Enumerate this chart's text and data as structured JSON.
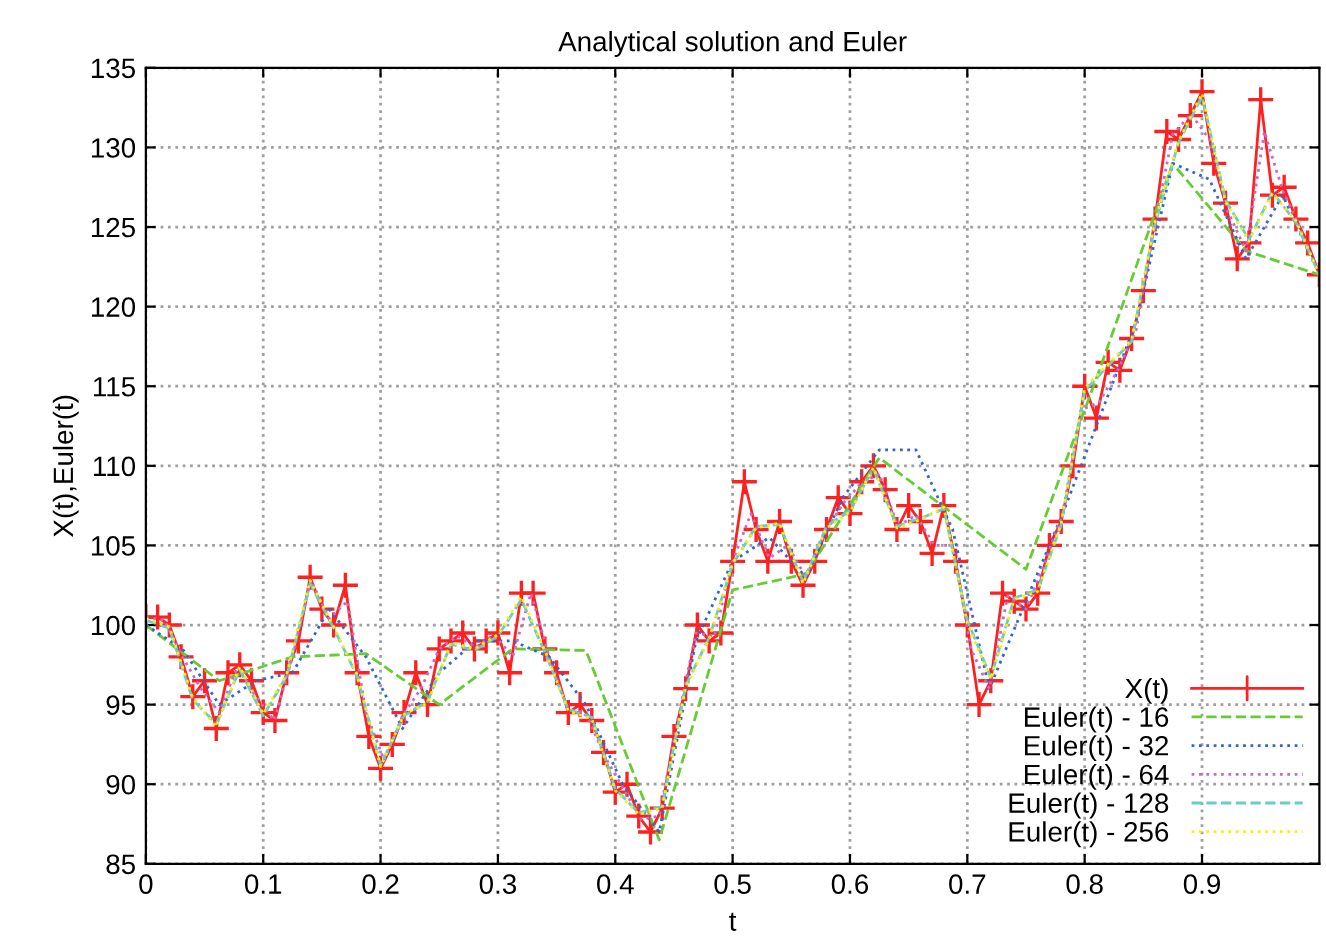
{
  "chart_data": {
    "type": "line",
    "title": "Analytical solution and Euler",
    "xlabel": "t",
    "ylabel": "X(t),Euler(t)",
    "xlim": [
      0,
      1
    ],
    "ylim": [
      85,
      135
    ],
    "xticks": [
      0,
      0.1,
      0.2,
      0.3,
      0.4,
      0.5,
      0.6,
      0.7,
      0.8,
      0.9
    ],
    "yticks": [
      85,
      90,
      95,
      100,
      105,
      110,
      115,
      120,
      125,
      130,
      135
    ],
    "grid": true,
    "legend": "bottom right",
    "series": [
      {
        "name": "X(t)",
        "color": "#ff2020",
        "marker": "cross",
        "line_style": "solid",
        "x": [
          0,
          0.01,
          0.02,
          0.03,
          0.04,
          0.05,
          0.06,
          0.07,
          0.08,
          0.09,
          0.1,
          0.11,
          0.12,
          0.13,
          0.14,
          0.15,
          0.16,
          0.17,
          0.18,
          0.19,
          0.2,
          0.21,
          0.22,
          0.23,
          0.24,
          0.25,
          0.26,
          0.27,
          0.28,
          0.29,
          0.3,
          0.31,
          0.32,
          0.33,
          0.34,
          0.35,
          0.36,
          0.37,
          0.38,
          0.39,
          0.4,
          0.41,
          0.42,
          0.43,
          0.44,
          0.45,
          0.46,
          0.47,
          0.48,
          0.49,
          0.5,
          0.51,
          0.52,
          0.53,
          0.54,
          0.55,
          0.56,
          0.57,
          0.58,
          0.59,
          0.6,
          0.61,
          0.62,
          0.63,
          0.64,
          0.65,
          0.66,
          0.67,
          0.68,
          0.69,
          0.7,
          0.71,
          0.72,
          0.73,
          0.74,
          0.75,
          0.76,
          0.77,
          0.78,
          0.79,
          0.8,
          0.81,
          0.82,
          0.83,
          0.84,
          0.85,
          0.86,
          0.87,
          0.88,
          0.89,
          0.9,
          0.91,
          0.92,
          0.93,
          0.94,
          0.95,
          0.96,
          0.97,
          0.98,
          0.99,
          1.0
        ],
        "values": [
          100.5,
          100.5,
          100,
          98,
          95.5,
          96.5,
          93.5,
          97,
          97.5,
          96.5,
          94.5,
          94,
          97,
          99,
          103,
          101,
          100,
          102.5,
          97,
          93,
          91,
          92.5,
          94.5,
          97,
          95,
          98.5,
          99,
          99.5,
          98.5,
          99,
          99.5,
          97,
          102,
          102,
          98.5,
          97,
          94.5,
          95,
          94,
          92,
          89.5,
          90,
          88,
          87,
          88.5,
          93,
          96,
          100,
          99,
          99.5,
          104,
          109,
          106,
          104,
          106.5,
          104,
          102.5,
          104,
          106,
          108,
          107,
          109,
          110,
          108.5,
          106,
          107.5,
          106.5,
          104.5,
          107.5,
          104,
          100,
          95,
          96.5,
          102,
          101.5,
          101,
          102,
          105,
          106.5,
          110,
          115,
          113,
          116.5,
          116,
          118,
          121,
          125.5,
          131,
          130.5,
          132,
          133.5,
          129,
          126.5,
          123,
          124,
          133,
          127,
          127.5,
          125.5,
          124,
          122
        ]
      },
      {
        "name": "Euler(t) - 16",
        "color": "#66cc33",
        "marker": "none",
        "line_style": "dashed",
        "x": [
          0,
          0.0625,
          0.125,
          0.1875,
          0.25,
          0.3125,
          0.375,
          0.4375,
          0.5,
          0.5625,
          0.625,
          0.6875,
          0.75,
          0.8125,
          0.875,
          0.9375,
          1.0
        ],
        "values": [
          100,
          96.5,
          98,
          98.2,
          95,
          98.5,
          98.4,
          86.5,
          102.2,
          103.2,
          110.5,
          107,
          103.5,
          116,
          129,
          123.5,
          122
        ]
      },
      {
        "name": "Euler(t) - 32",
        "color": "#3366cc",
        "marker": "none",
        "line_style": "dotted",
        "x": [
          0,
          0.03125,
          0.0625,
          0.09375,
          0.125,
          0.15625,
          0.1875,
          0.21875,
          0.25,
          0.28125,
          0.3125,
          0.34375,
          0.375,
          0.40625,
          0.4375,
          0.46875,
          0.5,
          0.53125,
          0.5625,
          0.59375,
          0.625,
          0.65625,
          0.6875,
          0.71875,
          0.75,
          0.78125,
          0.8125,
          0.84375,
          0.875,
          0.90625,
          0.9375,
          0.96875,
          1.0
        ],
        "values": [
          100,
          98.5,
          95,
          96.5,
          97,
          101,
          98,
          93.5,
          97,
          99,
          99,
          98,
          95,
          90,
          87,
          99,
          104,
          105.5,
          103,
          108,
          111,
          111,
          106,
          96,
          101.5,
          107,
          113,
          119,
          129,
          128,
          123,
          127,
          122
        ]
      },
      {
        "name": "Euler(t) - 64",
        "color": "#cc66cc",
        "marker": "none",
        "line_style": "dotted",
        "x": [
          0,
          0.015625,
          0.03125,
          0.046875,
          0.0625,
          0.078125,
          0.09375,
          0.109375,
          0.125,
          0.140625,
          0.15625,
          0.171875,
          0.1875,
          0.203125,
          0.21875,
          0.234375,
          0.25,
          0.265625,
          0.28125,
          0.296875,
          0.3125,
          0.328125,
          0.34375,
          0.359375,
          0.375,
          0.390625,
          0.40625,
          0.421875,
          0.4375,
          0.453125,
          0.46875,
          0.484375,
          0.5,
          0.515625,
          0.53125,
          0.546875,
          0.5625,
          0.578125,
          0.59375,
          0.609375,
          0.625,
          0.640625,
          0.65625,
          0.671875,
          0.6875,
          0.703125,
          0.71875,
          0.734375,
          0.75,
          0.765625,
          0.78125,
          0.796875,
          0.8125,
          0.828125,
          0.84375,
          0.859375,
          0.875,
          0.890625,
          0.90625,
          0.921875,
          0.9375,
          0.953125,
          0.96875,
          0.984375,
          1.0
        ],
        "values": [
          100.5,
          100.3,
          98,
          96,
          94.5,
          97.4,
          95.5,
          94,
          98,
          102.8,
          100.4,
          101.5,
          94.5,
          91.5,
          94.3,
          96,
          98.5,
          99.3,
          98.6,
          99.4,
          98,
          102,
          98,
          94.7,
          94.5,
          91.8,
          89.8,
          87.8,
          88,
          94,
          99.5,
          99.3,
          104,
          107,
          104.2,
          105,
          103,
          105.7,
          107.6,
          108.9,
          109.5,
          106.2,
          106.9,
          105,
          105,
          98.5,
          96,
          101.8,
          101,
          103.8,
          107,
          113.5,
          114,
          116,
          118.5,
          125,
          130.8,
          132.1,
          130.5,
          126,
          123.5,
          131,
          127.3,
          124.8,
          122
        ]
      },
      {
        "name": "Euler(t) - 128",
        "color": "#66cccc",
        "marker": "none",
        "line_style": "dashed",
        "x": [
          0,
          0.02,
          0.04,
          0.06,
          0.08,
          0.1,
          0.12,
          0.14,
          0.16,
          0.18,
          0.2,
          0.22,
          0.24,
          0.26,
          0.28,
          0.3,
          0.32,
          0.34,
          0.36,
          0.38,
          0.4,
          0.42,
          0.44,
          0.46,
          0.48,
          0.5,
          0.52,
          0.54,
          0.56,
          0.58,
          0.6,
          0.62,
          0.64,
          0.66,
          0.68,
          0.7,
          0.72,
          0.74,
          0.76,
          0.78,
          0.8,
          0.82,
          0.84,
          0.86,
          0.88,
          0.9,
          0.92,
          0.94,
          0.96,
          0.98,
          1.0
        ],
        "values": [
          100.3,
          99.8,
          95.3,
          93.8,
          97.2,
          94.3,
          96.8,
          102.6,
          99.8,
          96.8,
          91.2,
          94.3,
          95.2,
          98.8,
          98.4,
          99.3,
          101.6,
          98.3,
          94.7,
          94.2,
          89.7,
          88.2,
          88.6,
          96.2,
          99.2,
          103.8,
          106.2,
          106.3,
          102.7,
          106.2,
          107.2,
          109.8,
          106.2,
          106.7,
          107.3,
          100.3,
          96.7,
          101.7,
          102.2,
          106.3,
          114.7,
          116.3,
          117.8,
          125.2,
          130.3,
          133.2,
          126.7,
          124.2,
          127.2,
          125.3,
          122
        ]
      },
      {
        "name": "Euler(t) - 256",
        "color": "#ffee00",
        "marker": "none",
        "line_style": "dotted",
        "x": [
          0,
          0.02,
          0.04,
          0.06,
          0.08,
          0.1,
          0.12,
          0.14,
          0.16,
          0.18,
          0.2,
          0.22,
          0.24,
          0.26,
          0.28,
          0.3,
          0.32,
          0.34,
          0.36,
          0.38,
          0.4,
          0.42,
          0.44,
          0.46,
          0.48,
          0.5,
          0.52,
          0.54,
          0.56,
          0.58,
          0.6,
          0.62,
          0.64,
          0.66,
          0.68,
          0.7,
          0.72,
          0.74,
          0.76,
          0.78,
          0.8,
          0.82,
          0.84,
          0.86,
          0.88,
          0.9,
          0.92,
          0.94,
          0.96,
          0.98,
          1.0
        ],
        "values": [
          100.4,
          99.9,
          95.4,
          93.6,
          97.4,
          94.4,
          96.9,
          102.8,
          99.9,
          96.9,
          91.1,
          94.4,
          95.1,
          98.9,
          98.5,
          99.4,
          101.8,
          98.4,
          94.6,
          94.1,
          89.6,
          88.1,
          88.5,
          96.1,
          99.1,
          103.9,
          106.1,
          106.4,
          102.6,
          106.1,
          107.1,
          109.9,
          106.1,
          106.6,
          107.4,
          100.1,
          96.6,
          101.6,
          102.1,
          106.4,
          114.9,
          116.4,
          117.9,
          125.4,
          130.4,
          133.4,
          126.6,
          124.1,
          127.1,
          125.4,
          122
        ]
      }
    ]
  }
}
